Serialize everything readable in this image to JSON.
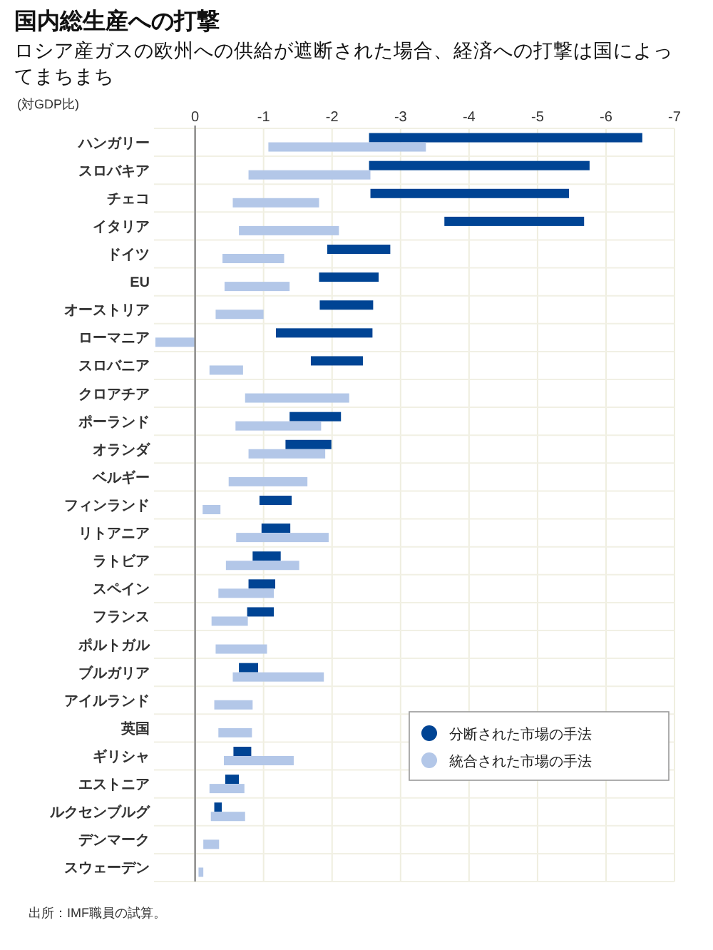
{
  "chart_data": {
    "type": "bar",
    "orientation": "horizontal",
    "title": "国内総生産への打撃",
    "subtitle": "ロシア産ガスの欧州への供給が遮断された場合、経済への打撃は国によってまちまち",
    "annotations": [
      "(対GDP比)",
      "出所：IMF職員の試算。"
    ],
    "categories": [
      "ハンガリー",
      "スロバキア",
      "チェコ",
      "イタリア",
      "ドイツ",
      "EU",
      "オーストリア",
      "ローマニア",
      "スロバニア",
      "クロアチア",
      "ポーランド",
      "オランダ",
      "ベルギー",
      "フィンランド",
      "リトアニア",
      "ラトビア",
      "スペイン",
      "フランス",
      "ポルトガル",
      "ブルガリア",
      "アイルランド",
      "英国",
      "ギリシャ",
      "エストニア",
      "ルクセンブルグ",
      "デンマーク",
      "スウェーデン"
    ],
    "series": [
      {
        "name": "分断された市場の手法",
        "color": "#004494",
        "base": [
          -2.54,
          -2.54,
          -2.56,
          -3.64,
          -1.93,
          -1.81,
          -1.82,
          -1.18,
          -1.69,
          null,
          -1.38,
          -1.32,
          null,
          -0.94,
          -0.97,
          -0.84,
          -0.78,
          -0.76,
          null,
          -0.64,
          null,
          null,
          -0.56,
          -0.44,
          -0.28,
          null,
          null
        ],
        "values": [
          -3.99,
          -3.22,
          -2.9,
          -2.04,
          -0.92,
          -0.87,
          -0.78,
          -1.41,
          -0.76,
          null,
          -0.75,
          -0.67,
          null,
          -0.47,
          -0.42,
          -0.41,
          -0.39,
          -0.39,
          null,
          -0.28,
          null,
          null,
          -0.26,
          -0.2,
          -0.11,
          null,
          null
        ]
      },
      {
        "name": "統合された市場の手法",
        "color": "#b3c7e8",
        "base": [
          -1.07,
          -0.78,
          -0.55,
          -0.64,
          -0.4,
          -0.43,
          -0.3,
          0,
          -0.21,
          -0.73,
          -0.59,
          -0.78,
          -0.49,
          -0.11,
          -0.6,
          -0.45,
          -0.34,
          -0.24,
          -0.3,
          -0.55,
          -0.28,
          -0.34,
          -0.42,
          -0.21,
          -0.23,
          -0.12,
          -0.05
        ],
        "values": [
          -2.3,
          -1.78,
          -1.26,
          -1.46,
          -0.9,
          -0.95,
          -0.7,
          0.58,
          -0.49,
          -1.52,
          -1.25,
          -1.12,
          -1.15,
          -0.26,
          -1.35,
          -1.07,
          -0.81,
          -0.53,
          -0.75,
          -1.33,
          -0.56,
          -0.49,
          -1.02,
          -0.51,
          -0.5,
          -0.23,
          -0.07
        ]
      }
    ],
    "xlim": [
      0.6,
      -7
    ],
    "xticks": [
      0,
      -1,
      -2,
      -3,
      -4,
      -5,
      -6,
      -7
    ],
    "grid": true,
    "legend": "bottom right"
  }
}
